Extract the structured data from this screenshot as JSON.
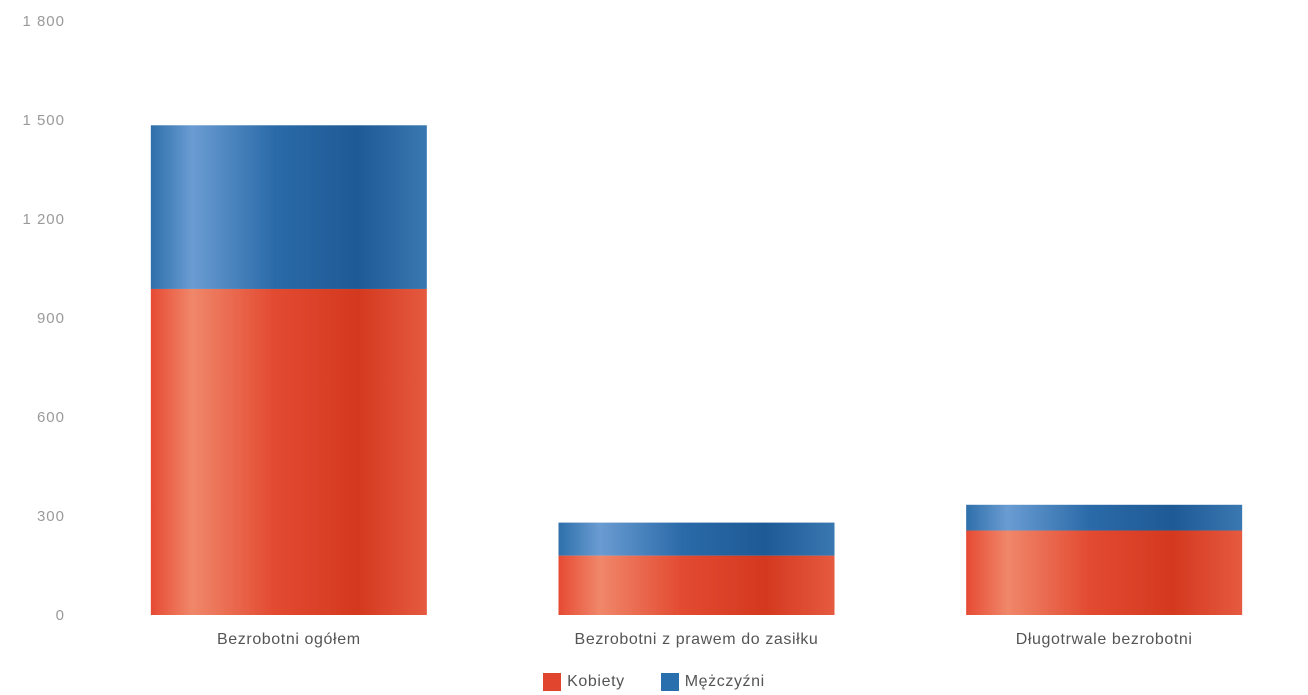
{
  "chart_data": {
    "type": "bar",
    "stacked": true,
    "categories": [
      "Bezrobotni ogółem",
      "Bezrobotni z prawem do zasiłku",
      "Długotrwale bezrobotni"
    ],
    "series": [
      {
        "name": "Kobiety",
        "values": [
          988,
          180,
          256
        ],
        "color": "#e2452d"
      },
      {
        "name": "Mężczyźni",
        "values": [
          496,
          100,
          78
        ],
        "color": "#2a6fad"
      }
    ],
    "ylim": [
      0,
      1800
    ],
    "yticks": [
      0,
      300,
      600,
      900,
      1200,
      1500,
      1800
    ],
    "ytick_labels": [
      "0",
      "300",
      "600",
      "900",
      "1 200",
      "1 500",
      "1 800"
    ],
    "grid": false,
    "legend": "bottom-center",
    "title": "",
    "xlabel": "",
    "ylabel": ""
  }
}
